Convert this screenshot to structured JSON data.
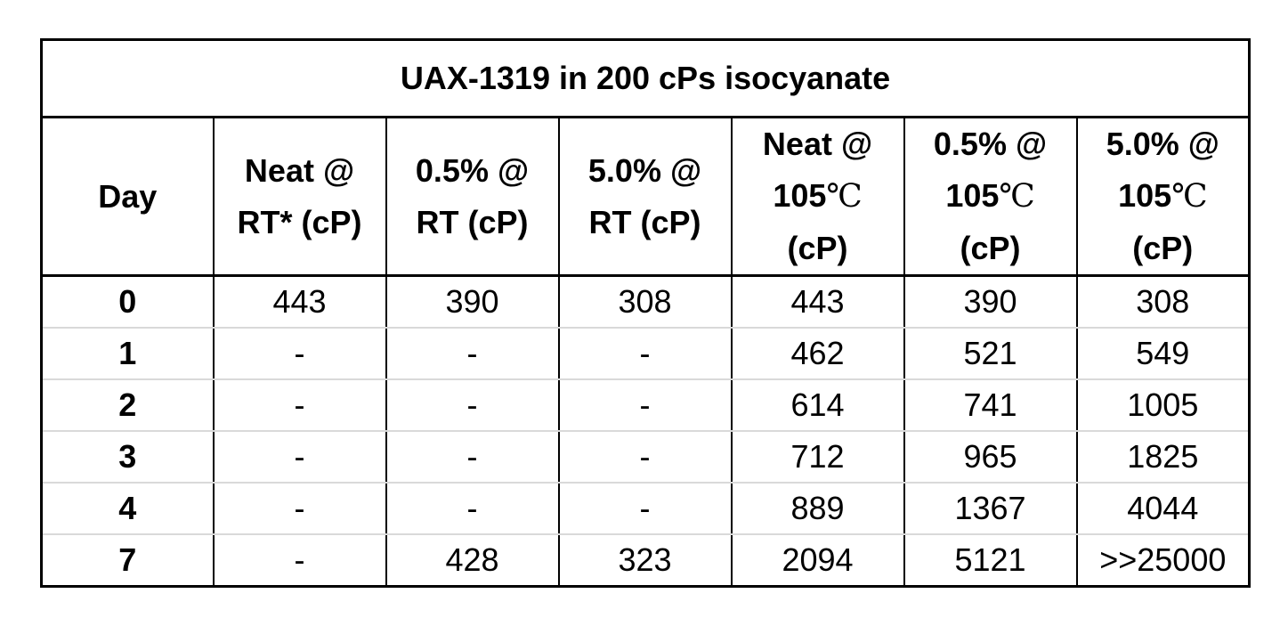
{
  "chart_data": {
    "type": "table",
    "title": "UAX-1319 in 200 cPs isocyanate",
    "columns": [
      {
        "lines": [
          "Day"
        ]
      },
      {
        "lines": [
          "Neat @",
          "RT* (cP)"
        ]
      },
      {
        "lines": [
          "0.5% @",
          "RT (cP)"
        ]
      },
      {
        "lines": [
          "5.0% @",
          "RT (cP)"
        ]
      },
      {
        "lines": [
          "Neat @",
          "105℃",
          "(cP)"
        ]
      },
      {
        "lines": [
          "0.5% @",
          "105℃",
          "(cP)"
        ]
      },
      {
        "lines": [
          "5.0% @",
          "105℃",
          "(cP)"
        ]
      }
    ],
    "rows": [
      [
        "0",
        "443",
        "390",
        "308",
        "443",
        "390",
        "308"
      ],
      [
        "1",
        "-",
        "-",
        "-",
        "462",
        "521",
        "549"
      ],
      [
        "2",
        "-",
        "-",
        "-",
        "614",
        "741",
        "1005"
      ],
      [
        "3",
        "-",
        "-",
        "-",
        "712",
        "965",
        "1825"
      ],
      [
        "4",
        "-",
        "-",
        "-",
        "889",
        "1367",
        "4044"
      ],
      [
        "7",
        "-",
        "428",
        "323",
        "2094",
        "5121",
        ">>25000"
      ]
    ]
  }
}
